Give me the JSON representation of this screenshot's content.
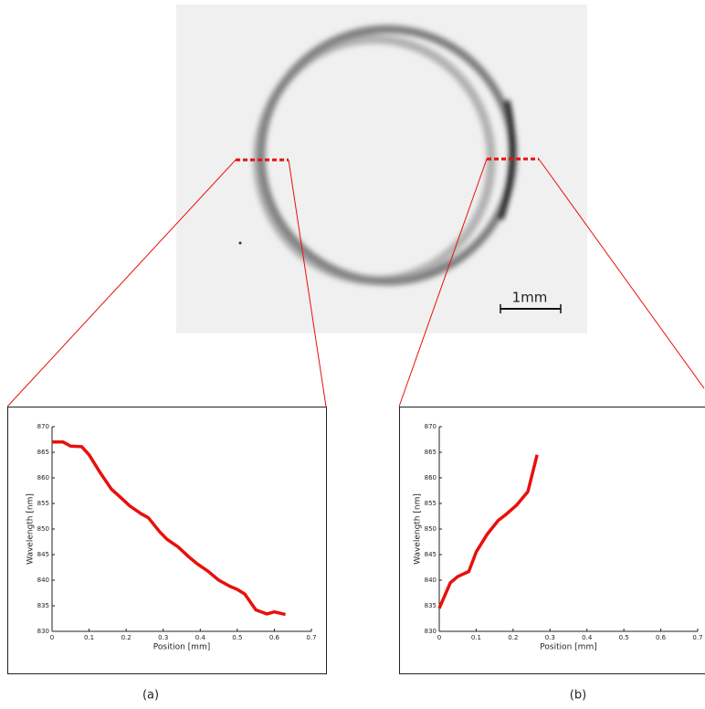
{
  "figure": {
    "scale_bar_label": "1mm",
    "captions": [
      "(a)",
      "(b)"
    ]
  },
  "chart_data": [
    {
      "type": "line",
      "xlabel": "Position [mm]",
      "ylabel": "Wavelength [nm]",
      "color": "#e8100c",
      "x": [
        0.0,
        0.03,
        0.05,
        0.08,
        0.1,
        0.13,
        0.16,
        0.18,
        0.21,
        0.24,
        0.26,
        0.29,
        0.31,
        0.34,
        0.37,
        0.39,
        0.42,
        0.45,
        0.48,
        0.5,
        0.52,
        0.55,
        0.58,
        0.6,
        0.63
      ],
      "values": [
        867,
        867,
        866.2,
        866.1,
        864.5,
        861,
        857.8,
        856.5,
        854.5,
        853,
        852.2,
        849.5,
        848,
        846.5,
        844.5,
        843.3,
        841.8,
        840,
        838.8,
        838.2,
        837.3,
        834.2,
        833.4,
        833.8,
        833.3
      ],
      "xlim": [
        0,
        0.7
      ],
      "xticks": [
        0,
        0.1,
        0.2,
        0.3,
        0.4,
        0.5,
        0.6,
        0.7
      ],
      "ylim": [
        830,
        870
      ],
      "yticks": [
        830,
        835,
        840,
        845,
        850,
        855,
        860,
        865,
        870
      ]
    },
    {
      "type": "line",
      "xlabel": "Position [mm]",
      "ylabel": "Wavelength [nm]",
      "color": "#e8100c",
      "x": [
        0.0,
        0.03,
        0.05,
        0.08,
        0.1,
        0.13,
        0.16,
        0.18,
        0.21,
        0.24,
        0.265
      ],
      "values": [
        834.5,
        839.5,
        840.7,
        841.7,
        845.5,
        849,
        851.7,
        852.8,
        854.7,
        857.3,
        864.5
      ],
      "xlim": [
        0,
        0.7
      ],
      "xticks": [
        0,
        0.1,
        0.2,
        0.3,
        0.4,
        0.5,
        0.6,
        0.7
      ],
      "ylim": [
        830,
        870
      ],
      "yticks": [
        830,
        835,
        840,
        845,
        850,
        855,
        860,
        865,
        870
      ]
    }
  ]
}
